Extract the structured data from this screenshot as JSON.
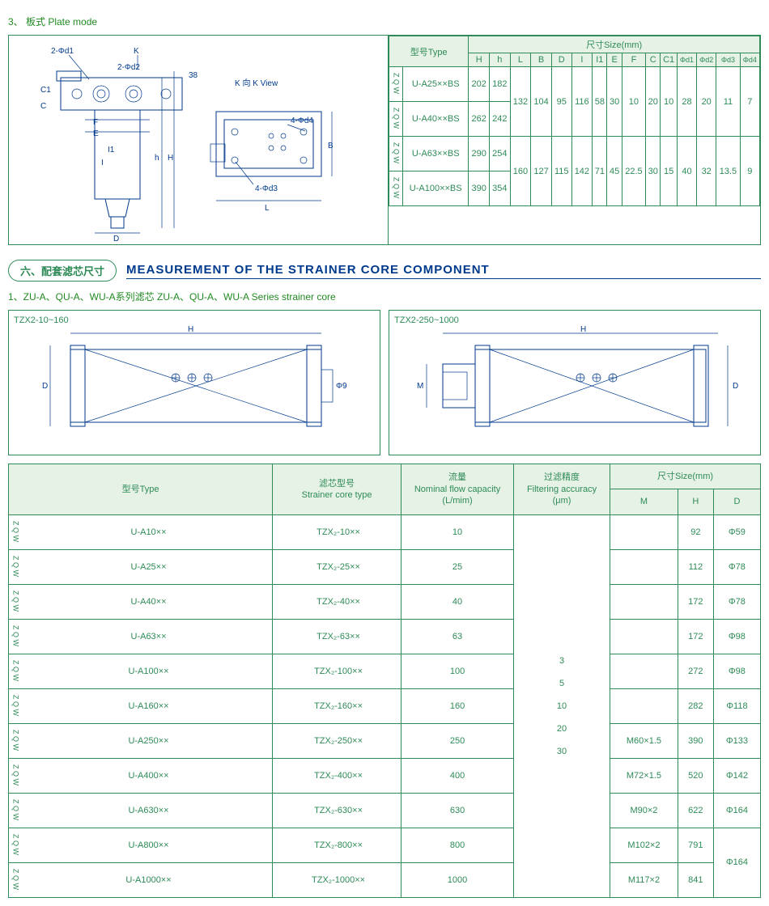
{
  "section3": {
    "num_label": "3、 板式  Plate mode",
    "diagram_labels": {
      "d1": "2-Φd1",
      "d2": "2-Φd2",
      "k": "K",
      "kview": "K 向\nK View",
      "c": "C",
      "c1": "C1",
      "f": "F",
      "e": "E",
      "i1": "I1",
      "i": "I",
      "d": "D",
      "h": "h",
      "H": "H",
      "b": "B",
      "l": "L",
      "d3": "4-Φd3",
      "d4": "4-Φd4",
      "n38": "38"
    },
    "table_header": {
      "type": "型号Type",
      "size": "尺寸Size(mm)",
      "cols": [
        "H",
        "h",
        "L",
        "B",
        "D",
        "I",
        "I1",
        "E",
        "F",
        "C",
        "C1",
        "Φd1",
        "Φd2",
        "Φd3",
        "Φd4"
      ]
    },
    "rows": [
      {
        "prefix": "Z Q W",
        "type": "U-A25××BS",
        "H": "202",
        "h": "182"
      },
      {
        "prefix": "Z Q W",
        "type": "U-A40××BS",
        "H": "262",
        "h": "242"
      },
      {
        "prefix": "Z Q W",
        "type": "U-A63××BS",
        "H": "290",
        "h": "254"
      },
      {
        "prefix": "Z Q W",
        "type": "U-A100××BS",
        "H": "390",
        "h": "354"
      }
    ],
    "group1": {
      "L": "132",
      "B": "104",
      "D": "95",
      "I": "116",
      "I1": "58",
      "E": "30",
      "F": "10",
      "C": "20",
      "C1": "10",
      "d1": "28",
      "d2": "20",
      "d3": "11",
      "d4": "7"
    },
    "group2": {
      "L": "160",
      "B": "127",
      "D": "115",
      "I": "142",
      "I1": "71",
      "E": "45",
      "F": "22.5",
      "C": "30",
      "C1": "15",
      "d1": "40",
      "d2": "32",
      "d3": "13.5",
      "d4": "9"
    }
  },
  "section6": {
    "badge": "六、配套滤芯尺寸",
    "title": "MEASUREMENT OF THE STRAINER CORE COMPONENT",
    "sub1": "1、ZU-A、QU-A、WU-A系列滤芯  ZU-A、QU-A、WU-A Series strainer core",
    "box1_label": "TZX2-10~160",
    "box2_label": "TZX2-250~1000",
    "diagram_dims": {
      "H": "H",
      "D": "D",
      "M": "M",
      "phi9": "Φ9"
    },
    "table_header": {
      "type": "型号Type",
      "core": "滤芯型号\nStrainer core type",
      "flow": "流量\nNominal flow capacity\n(L/mim)",
      "acc": "过滤精度\nFiltering accuracy\n(μm)",
      "size": "尺寸Size(mm)",
      "M": "M",
      "H": "H",
      "D": "D"
    },
    "rows": [
      {
        "p": "Z Q W",
        "t": "U-A10××",
        "c": "TZX₂-10××",
        "f": "10",
        "m": "",
        "h": "92",
        "d": "Φ59"
      },
      {
        "p": "Z Q W",
        "t": "U-A25××",
        "c": "TZX₂-25××",
        "f": "25",
        "m": "",
        "h": "112",
        "d": "Φ78"
      },
      {
        "p": "Z Q W",
        "t": "U-A40××",
        "c": "TZX₂-40××",
        "f": "40",
        "m": "",
        "h": "172",
        "d": "Φ78"
      },
      {
        "p": "Z Q W",
        "t": "U-A63××",
        "c": "TZX₂-63××",
        "f": "63",
        "m": "",
        "h": "172",
        "d": "Φ98"
      },
      {
        "p": "Z Q W",
        "t": "U-A100××",
        "c": "TZX₂-100××",
        "f": "100",
        "m": "",
        "h": "272",
        "d": "Φ98"
      },
      {
        "p": "Z Q W",
        "t": "U-A160××",
        "c": "TZX₂-160××",
        "f": "160",
        "m": "",
        "h": "282",
        "d": "Φ118"
      },
      {
        "p": "Z Q W",
        "t": "U-A250××",
        "c": "TZX₂-250××",
        "f": "250",
        "m": "M60×1.5",
        "h": "390",
        "d": "Φ133"
      },
      {
        "p": "Z Q W",
        "t": "U-A400××",
        "c": "TZX₂-400××",
        "f": "400",
        "m": "M72×1.5",
        "h": "520",
        "d": "Φ142"
      },
      {
        "p": "Z Q W",
        "t": "U-A630××",
        "c": "TZX₂-630××",
        "f": "630",
        "m": "M90×2",
        "h": "622",
        "d": "Φ164"
      },
      {
        "p": "Z Q W",
        "t": "U-A800××",
        "c": "TZX₂-800××",
        "f": "800",
        "m": "M102×2",
        "h": "791",
        "d": ""
      },
      {
        "p": "Z Q W",
        "t": "U-A1000××",
        "c": "TZX₂-1000××",
        "f": "1000",
        "m": "M117×2",
        "h": "841",
        "d": ""
      }
    ],
    "acc_values": [
      "3",
      "5",
      "10",
      "20",
      "30"
    ],
    "d_last": "Φ164"
  }
}
